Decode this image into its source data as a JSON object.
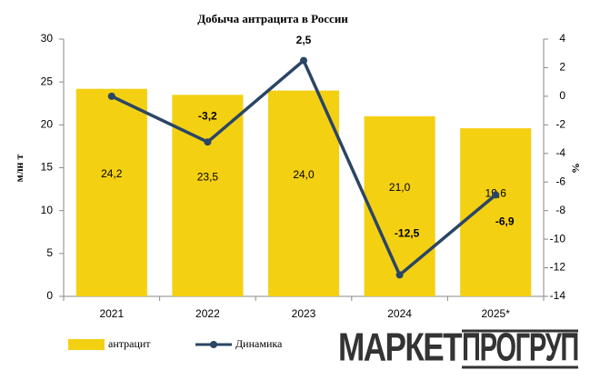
{
  "chart_data": {
    "type": "bar",
    "title": "Добыча антрацита в России",
    "categories": [
      "2021",
      "2022",
      "2023",
      "2024",
      "2025*"
    ],
    "series": [
      {
        "name": "антрацит",
        "type": "bar",
        "color": "#f4d012",
        "values": [
          24.2,
          23.5,
          24.0,
          21.0,
          19.6
        ],
        "value_labels": [
          "24,2",
          "23,5",
          "24,0",
          "21,0",
          "19,6"
        ]
      },
      {
        "name": "Динамика",
        "type": "line",
        "axis": "y2",
        "color": "#2a4565",
        "values": [
          0,
          -3.2,
          2.5,
          -12.5,
          -6.9
        ],
        "value_labels": [
          null,
          "-3,2",
          "2,5",
          "-12,5",
          "-6,9"
        ]
      }
    ],
    "ylabel": "млн т",
    "y2label": "%",
    "ylim": [
      0,
      30
    ],
    "yticks": [
      0,
      5,
      10,
      15,
      20,
      25,
      30
    ],
    "y2lim": [
      -14,
      4
    ],
    "y2ticks": [
      -14,
      -12,
      -10,
      -8,
      -6,
      -4,
      -2,
      0,
      2,
      4
    ],
    "grid": false,
    "legend": "bottom-left",
    "brand": [
      "МАРКЕТ",
      "ПРОГРУП"
    ]
  }
}
